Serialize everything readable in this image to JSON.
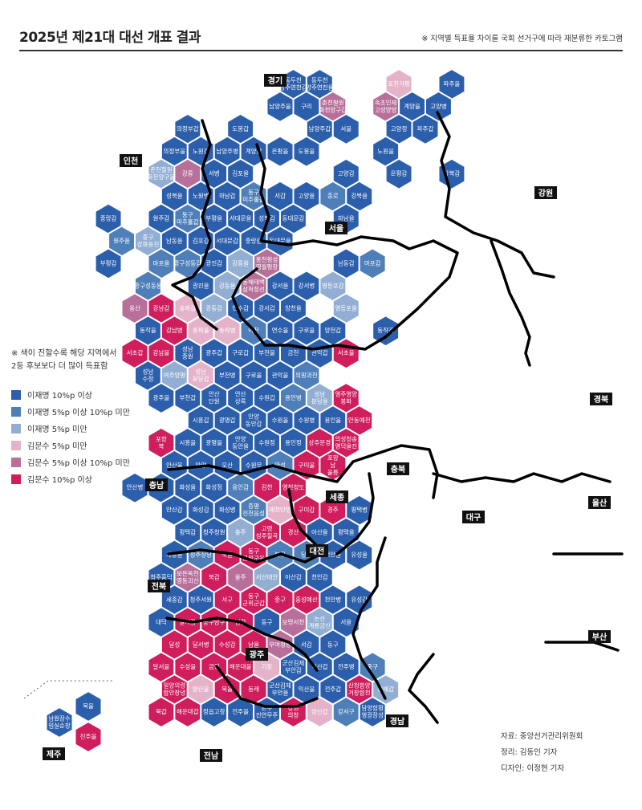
{
  "header": {
    "title": "2025년 제21대 대선 개표 결과",
    "note": "※ 지역별 득표율 차이를 국회 선거구에 따라 재분류한 카토그램"
  },
  "legend": {
    "note_line1": "※ 색이 진할수록 해당 지역에서",
    "note_line2": "2등 후보보다 더 많이 득표함",
    "items": [
      {
        "label": "이재명 10%p 이상",
        "color": "#2b5eab"
      },
      {
        "label": "이재명 5%p 이상 10%p 미만",
        "color": "#4f7fb8"
      },
      {
        "label": "이재명 5%p 미만",
        "color": "#92aed3"
      },
      {
        "label": "김문수 5%p 미만",
        "color": "#e5b3c9"
      },
      {
        "label": "김문수 5%p 이상 10%p 미만",
        "color": "#b8709a"
      },
      {
        "label": "김문수 10%p 이상",
        "color": "#cf1d5d"
      }
    ]
  },
  "credits": {
    "source": "자료: 중앙선거관리위원회",
    "editor": "정리: 김동인 기자",
    "designer": "디자인: 이정현 기자"
  },
  "regions": [
    "경기",
    "인천",
    "강원",
    "서울",
    "충북",
    "경북",
    "충남",
    "세종",
    "대구",
    "울산",
    "대전",
    "전북",
    "광주",
    "부산",
    "경남",
    "제주",
    "전남"
  ],
  "districts": [
    {
      "name": "동두천 양주연천갑",
      "tier": 1
    },
    {
      "name": "동두천 양주연천을",
      "tier": 1
    },
    {
      "name": "포천가평",
      "tier": 4
    },
    {
      "name": "파주을",
      "tier": 1
    },
    {
      "name": "남양주을",
      "tier": 1
    },
    {
      "name": "구리",
      "tier": 1
    },
    {
      "name": "춘천철원 화천양구갑",
      "tier": 5
    },
    {
      "name": "속초인제 고성양양",
      "tier": 5
    },
    {
      "name": "계양을",
      "tier": 1
    },
    {
      "name": "고양병",
      "tier": 1
    },
    {
      "name": "의정부갑",
      "tier": 1
    },
    {
      "name": "도봉갑",
      "tier": 1
    },
    {
      "name": "남양주갑",
      "tier": 1
    },
    {
      "name": "서을",
      "tier": 1
    },
    {
      "name": "고양정",
      "tier": 1
    },
    {
      "name": "파주갑",
      "tier": 1
    },
    {
      "name": "의정부을",
      "tier": 1
    },
    {
      "name": "노원갑",
      "tier": 1
    },
    {
      "name": "남양주병",
      "tier": 1
    },
    {
      "name": "계양갑",
      "tier": 1
    },
    {
      "name": "은평을",
      "tier": 1
    },
    {
      "name": "도봉을",
      "tier": 1
    },
    {
      "name": "노원을",
      "tier": 1
    },
    {
      "name": "춘천철원 화천양구을",
      "tier": 3
    },
    {
      "name": "강릉",
      "tier": 5
    },
    {
      "name": "서병",
      "tier": 1
    },
    {
      "name": "김포을",
      "tier": 1
    },
    {
      "name": "고양갑",
      "tier": 1
    },
    {
      "name": "은평갑",
      "tier": 1
    },
    {
      "name": "강북갑",
      "tier": 1
    },
    {
      "name": "성북을",
      "tier": 1
    },
    {
      "name": "노원병",
      "tier": 1
    },
    {
      "name": "하남갑",
      "tier": 1
    },
    {
      "name": "동구 미추홀을",
      "tier": 2
    },
    {
      "name": "서갑",
      "tier": 1
    },
    {
      "name": "고양을",
      "tier": 1
    },
    {
      "name": "종로",
      "tier": 2
    },
    {
      "name": "강북을",
      "tier": 1
    },
    {
      "name": "중랑갑",
      "tier": 1
    },
    {
      "name": "원주갑",
      "tier": 1
    },
    {
      "name": "동구 미추홀갑",
      "tier": 2
    },
    {
      "name": "부평을",
      "tier": 1
    },
    {
      "name": "서대문을",
      "tier": 1
    },
    {
      "name": "성북갑",
      "tier": 1
    },
    {
      "name": "동대문갑",
      "tier": 1
    },
    {
      "name": "하남을",
      "tier": 1
    },
    {
      "name": "원주을",
      "tier": 2
    },
    {
      "name": "중구 강화옹진",
      "tier": 3
    },
    {
      "name": "남동을",
      "tier": 1
    },
    {
      "name": "김포갑",
      "tier": 1
    },
    {
      "name": "서대문갑",
      "tier": 1
    },
    {
      "name": "중랑을",
      "tier": 1
    },
    {
      "name": "동대문을",
      "tier": 1
    },
    {
      "name": "부평갑",
      "tier": 1
    },
    {
      "name": "마포을",
      "tier": 2
    },
    {
      "name": "중구성동갑",
      "tier": 2
    },
    {
      "name": "광진갑",
      "tier": 1
    },
    {
      "name": "강릉을",
      "tier": 3
    },
    {
      "name": "홍천횡성 영월평창",
      "tier": 5
    },
    {
      "name": "남동갑",
      "tier": 1
    },
    {
      "name": "마포갑",
      "tier": 2
    },
    {
      "name": "중구성동을",
      "tier": 2
    },
    {
      "name": "광진을",
      "tier": 1
    },
    {
      "name": "강동을",
      "tier": 3
    },
    {
      "name": "동해태백 삼척정선",
      "tier": 5
    },
    {
      "name": "강서을",
      "tier": 1
    },
    {
      "name": "강서병",
      "tier": 1
    },
    {
      "name": "영등포갑",
      "tier": 3
    },
    {
      "name": "용산",
      "tier": 5
    },
    {
      "name": "강남갑",
      "tier": 6
    },
    {
      "name": "송파갑",
      "tier": 4
    },
    {
      "name": "강동갑",
      "tier": 3
    },
    {
      "name": "연수갑",
      "tier": 1
    },
    {
      "name": "강서갑",
      "tier": 1
    },
    {
      "name": "양천을",
      "tier": 1
    },
    {
      "name": "영등포을",
      "tier": 3
    },
    {
      "name": "동작을",
      "tier": 1
    },
    {
      "name": "강남병",
      "tier": 6
    },
    {
      "name": "송파을",
      "tier": 4
    },
    {
      "name": "송파병",
      "tier": 4
    },
    {
      "name": "이천",
      "tier": 2
    },
    {
      "name": "연수을",
      "tier": 1
    },
    {
      "name": "구로을",
      "tier": 1
    },
    {
      "name": "양천갑",
      "tier": 1
    },
    {
      "name": "동작갑",
      "tier": 1
    },
    {
      "name": "서초갑",
      "tier": 6
    },
    {
      "name": "강남을",
      "tier": 6
    },
    {
      "name": "성남 중원",
      "tier": 1
    },
    {
      "name": "광주갑",
      "tier": 1
    },
    {
      "name": "구로갑",
      "tier": 1
    },
    {
      "name": "부천을",
      "tier": 1
    },
    {
      "name": "금천",
      "tier": 1
    },
    {
      "name": "관악갑",
      "tier": 1
    },
    {
      "name": "서초을",
      "tier": 6
    },
    {
      "name": "성남 수정",
      "tier": 1
    },
    {
      "name": "여주양평",
      "tier": 3
    },
    {
      "name": "성남 분당갑",
      "tier": 4
    },
    {
      "name": "부천병",
      "tier": 1
    },
    {
      "name": "구로을",
      "tier": 1
    },
    {
      "name": "관악을",
      "tier": 1
    },
    {
      "name": "의왕과천",
      "tier": 2
    },
    {
      "name": "광주을",
      "tier": 1
    },
    {
      "name": "부천갑",
      "tier": 1
    },
    {
      "name": "안산 단원",
      "tier": 1
    },
    {
      "name": "안산 상록",
      "tier": 1
    },
    {
      "name": "수원갑",
      "tier": 1
    },
    {
      "name": "용인병",
      "tier": 2
    },
    {
      "name": "성남 분당을",
      "tier": 3
    },
    {
      "name": "영주영양 봉화",
      "tier": 6
    },
    {
      "name": "시흥갑",
      "tier": 1
    },
    {
      "name": "광명갑",
      "tier": 1
    },
    {
      "name": "안양 동안갑",
      "tier": 1
    },
    {
      "name": "수원을",
      "tier": 1
    },
    {
      "name": "수원병",
      "tier": 1
    },
    {
      "name": "용인을",
      "tier": 1
    },
    {
      "name": "안동예천",
      "tier": 6
    },
    {
      "name": "포항 북",
      "tier": 6
    },
    {
      "name": "시흥을",
      "tier": 1
    },
    {
      "name": "광명을",
      "tier": 1
    },
    {
      "name": "안양 동안을",
      "tier": 1
    },
    {
      "name": "수원정",
      "tier": 1
    },
    {
      "name": "용인정",
      "tier": 1
    },
    {
      "name": "상주문경",
      "tier": 6
    },
    {
      "name": "의성청송 영덕울진",
      "tier": 6
    },
    {
      "name": "안산을",
      "tier": 1
    },
    {
      "name": "안양",
      "tier": 1
    },
    {
      "name": "오산",
      "tier": 1
    },
    {
      "name": "수원무",
      "tier": 1
    },
    {
      "name": "안성",
      "tier": 2
    },
    {
      "name": "구미을",
      "tier": 6
    },
    {
      "name": "포항 남 울릉",
      "tier": 6
    },
    {
      "name": "안산병",
      "tier": 1
    },
    {
      "name": "군포",
      "tier": 1
    },
    {
      "name": "화성을",
      "tier": 1
    },
    {
      "name": "화성정",
      "tier": 1
    },
    {
      "name": "용인갑",
      "tier": 2
    },
    {
      "name": "김천",
      "tier": 6
    },
    {
      "name": "영천청도",
      "tier": 6
    },
    {
      "name": "안산갑",
      "tier": 1
    },
    {
      "name": "화성갑",
      "tier": 1
    },
    {
      "name": "화성병",
      "tier": 1
    },
    {
      "name": "증평 진천음성",
      "tier": 2
    },
    {
      "name": "제천단양",
      "tier": 4
    },
    {
      "name": "구미갑",
      "tier": 6
    },
    {
      "name": "경주",
      "tier": 6
    },
    {
      "name": "평택병",
      "tier": 1
    },
    {
      "name": "평택갑",
      "tier": 1
    },
    {
      "name": "청주청원",
      "tier": 1
    },
    {
      "name": "충주",
      "tier": 3
    },
    {
      "name": "고령 성주칠곡",
      "tier": 6
    },
    {
      "name": "경산",
      "tier": 6
    },
    {
      "name": "아산을",
      "tier": 1
    },
    {
      "name": "평택을",
      "tier": 1
    },
    {
      "name": "세종을",
      "tier": 1
    },
    {
      "name": "청주상당",
      "tier": 2
    },
    {
      "name": "북을",
      "tier": 6
    },
    {
      "name": "동구 군위군을",
      "tier": 6
    },
    {
      "name": "북구",
      "tier": 2
    },
    {
      "name": "당진",
      "tier": 2
    },
    {
      "name": "천안을",
      "tier": 1
    },
    {
      "name": "유성을",
      "tier": 1
    },
    {
      "name": "청주흥덕",
      "tier": 1
    },
    {
      "name": "보은옥천 영동괴산",
      "tier": 5
    },
    {
      "name": "북갑",
      "tier": 6
    },
    {
      "name": "울주",
      "tier": 5
    },
    {
      "name": "서산태안",
      "tier": 3
    },
    {
      "name": "아산갑",
      "tier": 1
    },
    {
      "name": "천안갑",
      "tier": 1
    },
    {
      "name": "세종갑",
      "tier": 1
    },
    {
      "name": "청주서원",
      "tier": 1
    },
    {
      "name": "서구",
      "tier": 6
    },
    {
      "name": "동구 군위군갑",
      "tier": 6
    },
    {
      "name": "중구",
      "tier": 6
    },
    {
      "name": "홍성예산",
      "tier": 6
    },
    {
      "name": "천안병",
      "tier": 1
    },
    {
      "name": "유성갑",
      "tier": 1
    },
    {
      "name": "대덕",
      "tier": 1
    },
    {
      "name": "달서갑",
      "tier": 6
    },
    {
      "name": "중구남구",
      "tier": 6
    },
    {
      "name": "남갑",
      "tier": 6
    },
    {
      "name": "동구",
      "tier": 1
    },
    {
      "name": "보령서천",
      "tier": 5
    },
    {
      "name": "논산 계룡금산",
      "tier": 3
    },
    {
      "name": "서을",
      "tier": 1
    },
    {
      "name": "달성",
      "tier": 6
    },
    {
      "name": "달서병",
      "tier": 6
    },
    {
      "name": "수성갑",
      "tier": 6
    },
    {
      "name": "남을",
      "tier": 6
    },
    {
      "name": "부여청양",
      "tier": 5
    },
    {
      "name": "서갑",
      "tier": 1
    },
    {
      "name": "동구",
      "tier": 1
    },
    {
      "name": "달서을",
      "tier": 6
    },
    {
      "name": "수성을",
      "tier": 6
    },
    {
      "name": "금정",
      "tier": 6
    },
    {
      "name": "해운대을",
      "tier": 6
    },
    {
      "name": "기장",
      "tier": 4
    },
    {
      "name": "군산김제 부안갑",
      "tier": 1
    },
    {
      "name": "익산갑",
      "tier": 1
    },
    {
      "name": "전주병",
      "tier": 1
    },
    {
      "name": "중구",
      "tier": 2
    },
    {
      "name": "밀양의령 함안창녕",
      "tier": 6
    },
    {
      "name": "양산을",
      "tier": 4
    },
    {
      "name": "북을",
      "tier": 6
    },
    {
      "name": "동래",
      "tier": 6
    },
    {
      "name": "군산김제 부안을",
      "tier": 1
    },
    {
      "name": "익산을",
      "tier": 1
    },
    {
      "name": "전주갑",
      "tier": 1
    },
    {
      "name": "산청함양 거창합천",
      "tier": 6
    },
    {
      "name": "김해갑",
      "tier": 3
    },
    {
      "name": "북갑",
      "tier": 6
    },
    {
      "name": "해운대갑",
      "tier": 6
    },
    {
      "name": "정읍고창",
      "tier": 1
    },
    {
      "name": "전주을",
      "tier": 1
    },
    {
      "name": "완주 진안무주",
      "tier": 1
    },
    {
      "name": "창원 의창",
      "tier": 6
    },
    {
      "name": "양산갑",
      "tier": 4
    },
    {
      "name": "강서구",
      "tier": 2
    },
    {
      "name": "담양함평 영광장성",
      "tier": 1
    },
    {
      "name": "북을",
      "tier": 1
    },
    {
      "name": "남원장수 임실순창",
      "tier": 1
    },
    {
      "name": "진주을",
      "tier": 6
    },
    {
      "name": "창원 성산",
      "tier": 5
    },
    {
      "name": "사상",
      "tier": 6
    },
    {
      "name": "연제",
      "tier": 6
    },
    {
      "name": "영암 무안신안",
      "tier": 1
    },
    {
      "name": "광산을",
      "tier": 1
    },
    {
      "name": "북갑",
      "tier": 1
    },
    {
      "name": "동구남구을",
      "tier": 1
    },
    {
      "name": "진주갑",
      "tier": 6
    },
    {
      "name": "창원 마산회원",
      "tier": 6
    },
    {
      "name": "김해을",
      "tier": 2
    },
    {
      "name": "부산진갑",
      "tier": 6
    },
    {
      "name": "수영",
      "tier": 6
    },
    {
      "name": "목포",
      "tier": 1
    },
    {
      "name": "광산갑",
      "tier": 1
    },
    {
      "name": "서갑",
      "tier": 1
    },
    {
      "name": "창원 마산합포",
      "tier": 6
    },
    {
      "name": "창원 진해",
      "tier": 5
    },
    {
      "name": "사하갑",
      "tier": 5
    },
    {
      "name": "서구동구",
      "tier": 6
    },
    {
      "name": "부산진을",
      "tier": 6
    },
    {
      "name": "해남 완도진도",
      "tier": 1
    },
    {
      "name": "나주화순",
      "tier": 1
    },
    {
      "name": "동구남구갑",
      "tier": 1
    },
    {
      "name": "서을",
      "tier": 1
    },
    {
      "name": "순천광양 곡성구례을",
      "tier": 1
    },
    {
      "name": "사천 남해하동",
      "tier": 6
    },
    {
      "name": "거제",
      "tier": 3
    },
    {
      "name": "남구",
      "tier": 6
    },
    {
      "name": "여수을",
      "tier": 1
    },
    {
      "name": "순천광양 곡성구례갑",
      "tier": 1
    },
    {
      "name": "통영고성",
      "tier": 6
    },
    {
      "name": "사하을",
      "tier": 5
    },
    {
      "name": "중구영도",
      "tier": 6
    },
    {
      "name": "고흥보성 장흥강진",
      "tier": 1
    },
    {
      "name": "여수갑",
      "tier": 1
    },
    {
      "name": "제주을",
      "tier": 1
    },
    {
      "name": "제주갑",
      "tier": 1
    },
    {
      "name": "서귀포",
      "tier": 1
    }
  ]
}
